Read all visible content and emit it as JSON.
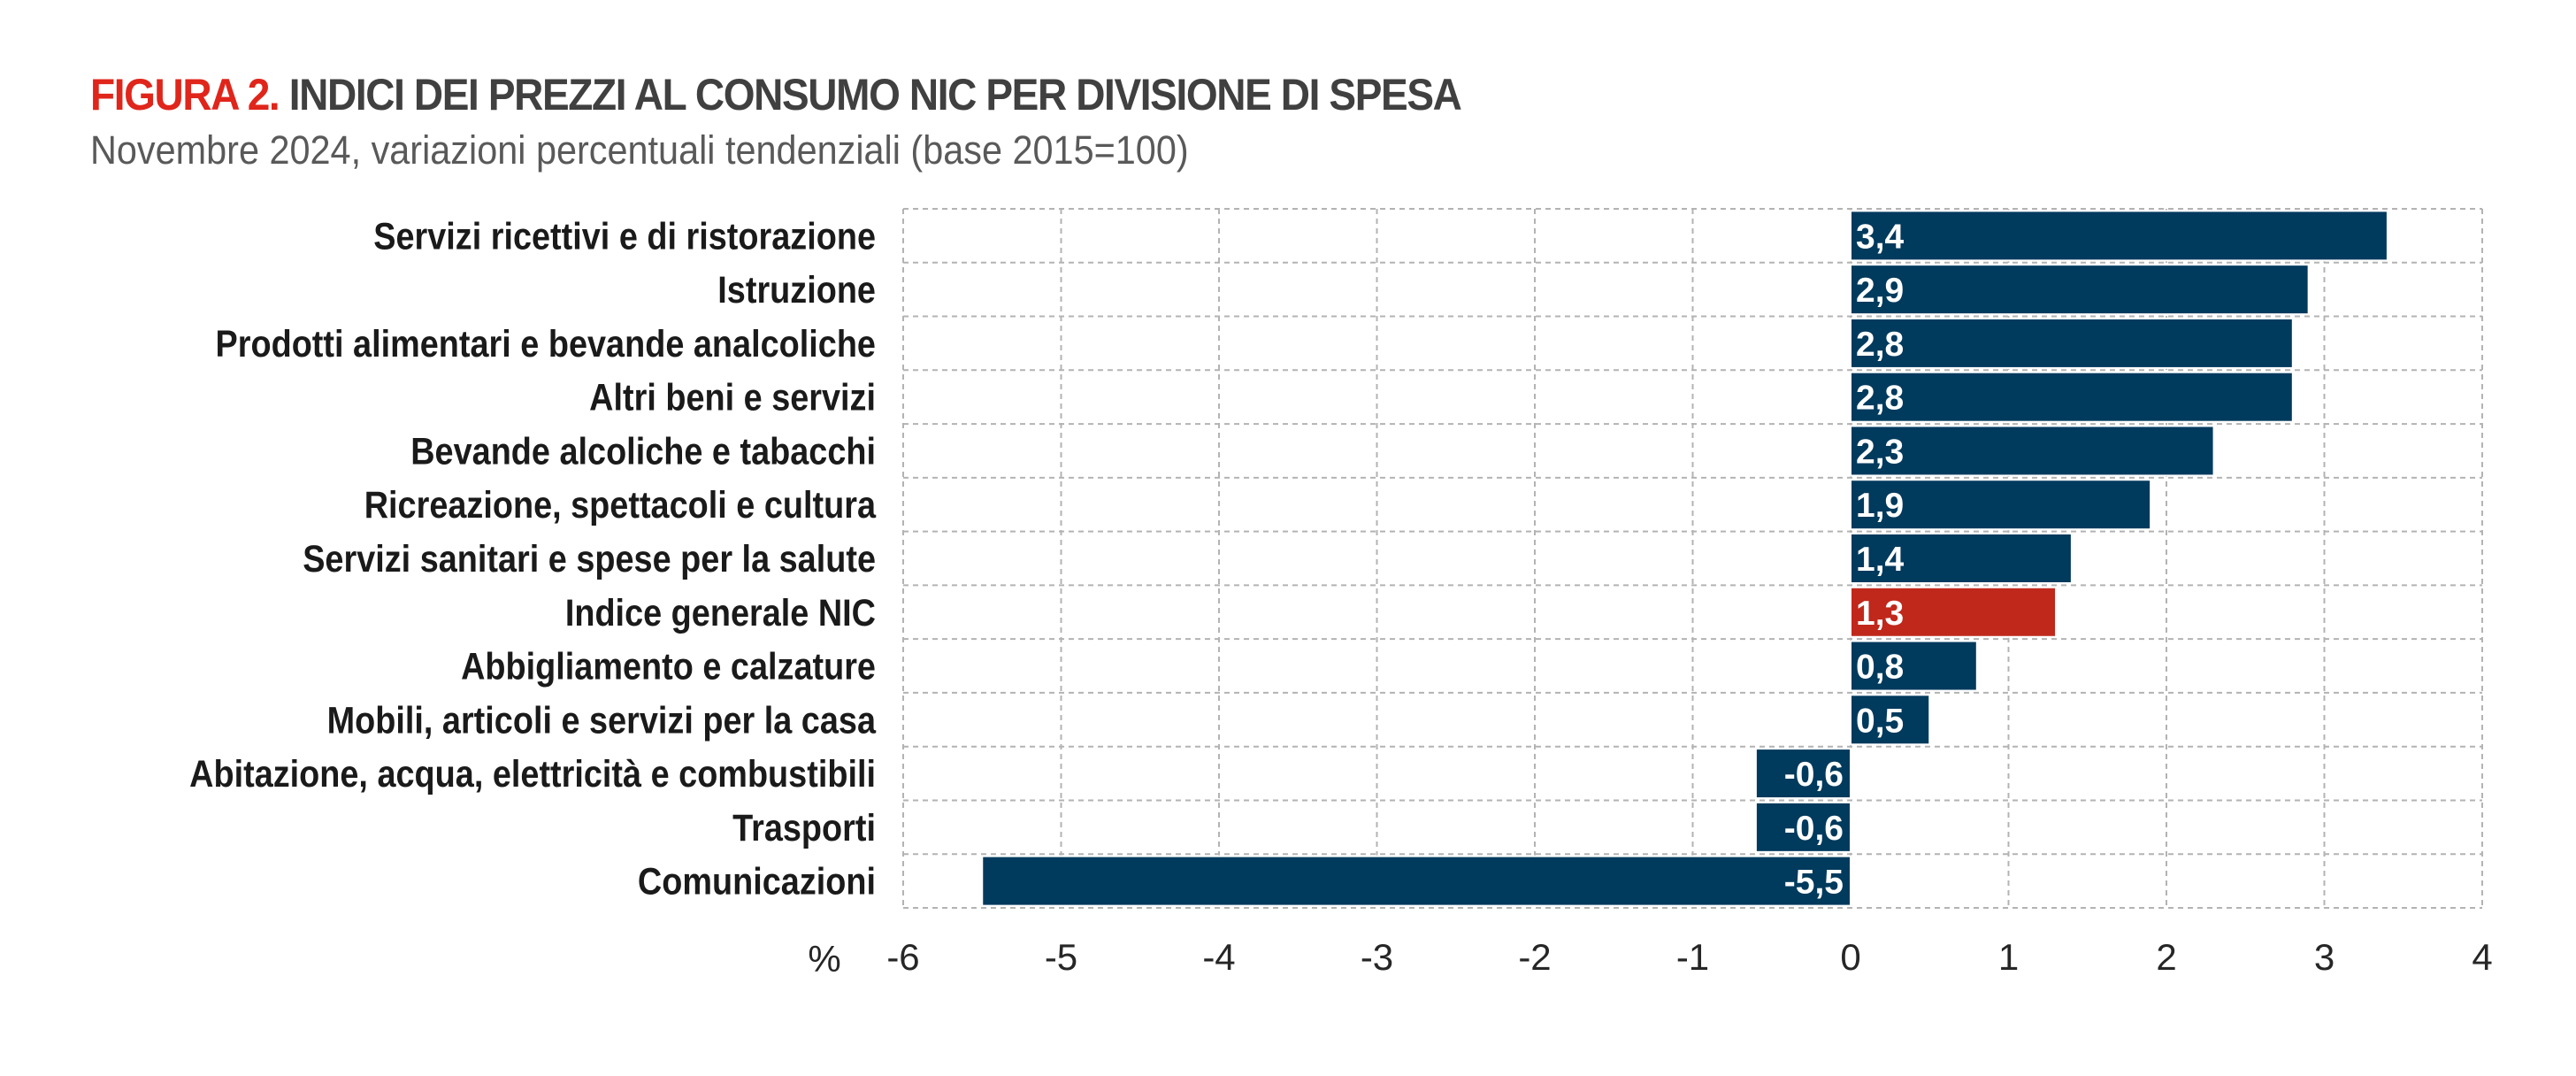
{
  "figure_label": "FIGURA 2.",
  "figure_title": "INDICI DEI PREZZI AL CONSUMO NIC PER DIVISIONE DI SPESA",
  "figure_subtitle": "Novembre 2024, variazioni percentuali tendenziali (base 2015=100)",
  "chart_data": {
    "type": "bar",
    "orientation": "horizontal",
    "categories": [
      "Servizi ricettivi e di ristorazione",
      "Istruzione",
      "Prodotti alimentari e bevande analcoliche",
      "Altri beni e servizi",
      "Bevande alcoliche e tabacchi",
      "Ricreazione, spettacoli e cultura",
      "Servizi sanitari e spese per la salute",
      "Indice generale NIC",
      "Abbigliamento e calzature",
      "Mobili, articoli e servizi per la casa",
      "Abitazione, acqua, elettricità e combustibili",
      "Trasporti",
      "Comunicazioni"
    ],
    "values": [
      3.4,
      2.9,
      2.8,
      2.8,
      2.3,
      1.9,
      1.4,
      1.3,
      0.8,
      0.5,
      -0.6,
      -0.6,
      -5.5
    ],
    "data_labels": [
      "3,4",
      "2,9",
      "2,8",
      "2,8",
      "2,3",
      "1,9",
      "1,4",
      "1,3",
      "0,8",
      "0,5",
      "-0,6",
      "-0,6",
      "-5,5"
    ],
    "highlight_category": "Indice generale NIC",
    "xlabel": "%",
    "xlim": [
      -6,
      4
    ],
    "xticks": [
      "-6",
      "-5",
      "-4",
      "-3",
      "-2",
      "-1",
      "0",
      "1",
      "2",
      "3",
      "4"
    ],
    "grid": true,
    "colors": {
      "bar": "#003a5d",
      "highlight": "#c0281b",
      "grid": "#b3b3b3"
    }
  }
}
